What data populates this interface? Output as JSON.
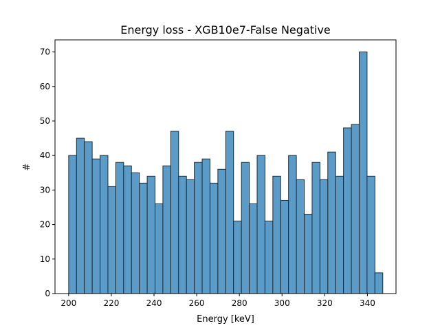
{
  "chart_data": {
    "type": "bar",
    "title": "Energy loss - XGB10e7-False Negative",
    "xlabel": "Energy [keV]",
    "ylabel": "#",
    "xlim": [
      193.6,
      353.4
    ],
    "ylim": [
      0,
      73.5
    ],
    "bin_start": 200.0,
    "bin_width": 3.68,
    "values": [
      40,
      45,
      44,
      39,
      40,
      31,
      38,
      37,
      35,
      32,
      34,
      26,
      37,
      47,
      34,
      33,
      38,
      39,
      32,
      36,
      47,
      21,
      38,
      26,
      40,
      21,
      34,
      27,
      40,
      33,
      23,
      38,
      33,
      41,
      34,
      48,
      49,
      70,
      34,
      6
    ],
    "xticks": [
      200,
      220,
      240,
      260,
      280,
      300,
      320,
      340
    ],
    "yticks": [
      0,
      10,
      20,
      30,
      40,
      50,
      60,
      70
    ],
    "bar_color": "#5b9bc8",
    "edge_color": "#1f2a33",
    "grid": false
  }
}
